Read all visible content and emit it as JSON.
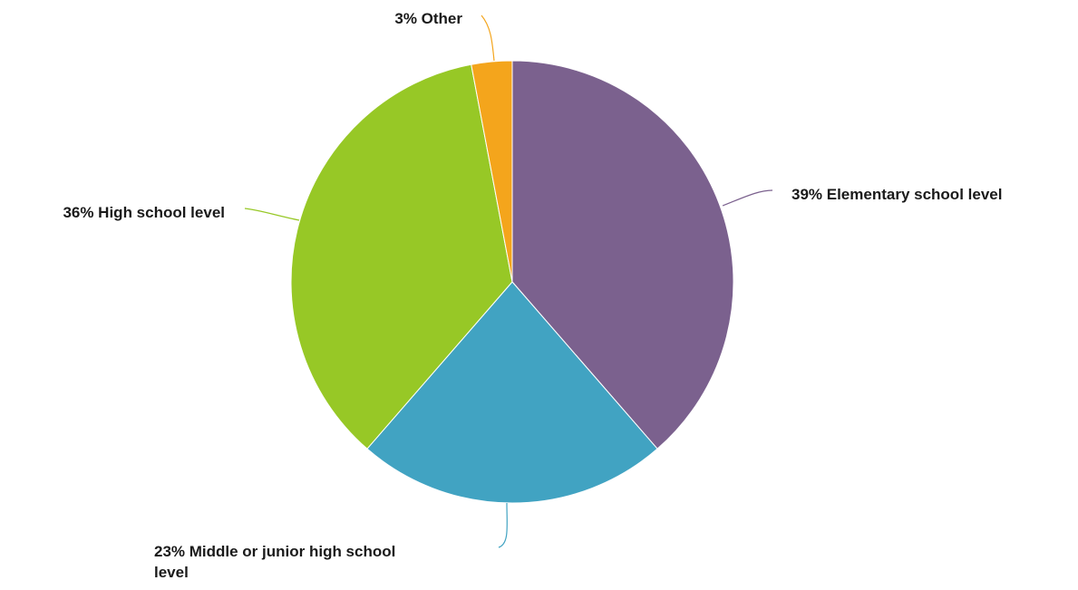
{
  "chart_data": {
    "type": "pie",
    "slices": [
      {
        "label": "39% Elementary school level",
        "value": 39,
        "color": "#7B618E"
      },
      {
        "label": "23% Middle or junior high school level",
        "lines": [
          "23% Middle or junior high school",
          "level"
        ],
        "value": 23,
        "color": "#41A3C2"
      },
      {
        "label": "36% High school level",
        "value": 36,
        "color": "#97C826"
      },
      {
        "label": "3% Other",
        "value": 3,
        "color": "#F4A51C"
      }
    ],
    "legend": "none",
    "start": "top",
    "direction": "clockwise"
  }
}
